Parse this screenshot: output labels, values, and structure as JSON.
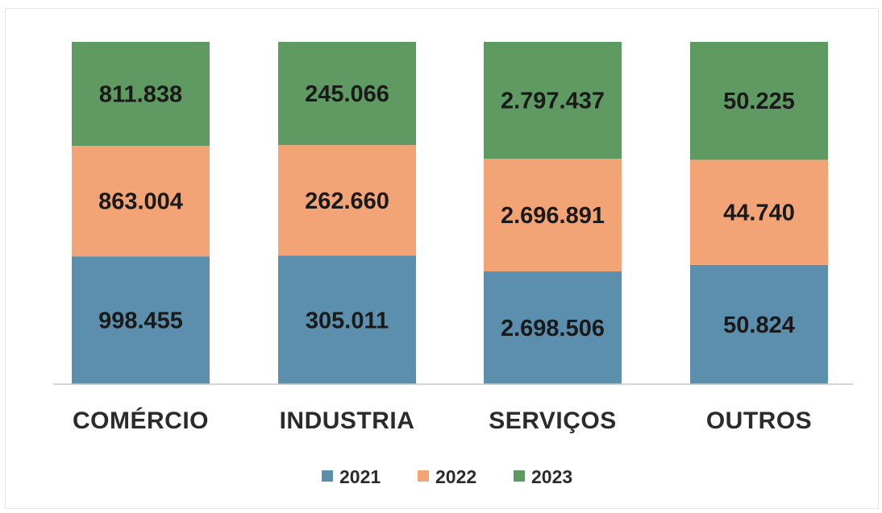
{
  "chart_data": {
    "type": "bar",
    "stacked": true,
    "categories": [
      "COMÉRCIO",
      "INDUSTRIA",
      "SERVIÇOS",
      "OUTROS"
    ],
    "series": [
      {
        "name": "2021",
        "color": "#5B8FAD",
        "values": [
          998455,
          305011,
          2698506,
          50824
        ],
        "labels": [
          "998.455",
          "305.011",
          "2.698.506",
          "50.824"
        ]
      },
      {
        "name": "2022",
        "color": "#F2A477",
        "values": [
          863004,
          262660,
          2696891,
          44740
        ],
        "labels": [
          "863.004",
          "262.660",
          "2.696.891",
          "44.740"
        ]
      },
      {
        "name": "2023",
        "color": "#5F9A63",
        "values": [
          811838,
          245066,
          2797437,
          50225
        ],
        "labels": [
          "811.838",
          "245.066",
          "2.797.437",
          "50.225"
        ]
      }
    ],
    "normalized_per_category": true,
    "legend_position": "bottom",
    "grid": false,
    "title": "",
    "xlabel": "",
    "ylabel": ""
  }
}
